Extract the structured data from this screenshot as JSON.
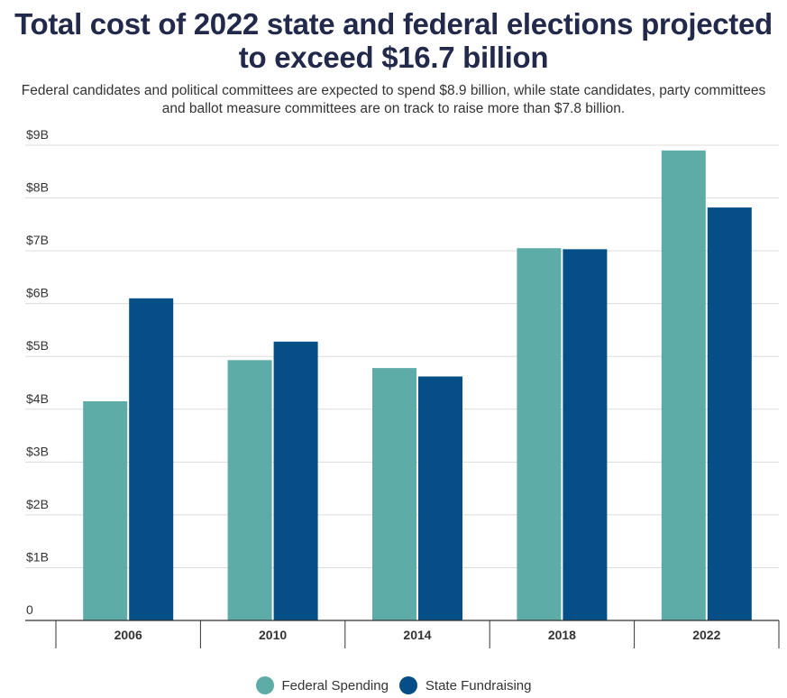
{
  "title": "Total cost of 2022 state and federal elections projected to exceed $16.7 billion",
  "subtitle": "Federal candidates and political committees are expected to spend $8.9 billion, while state candidates, party committees and ballot measure committees are on track to raise more than $7.8 billion.",
  "chart_data": {
    "type": "bar",
    "categories": [
      "2006",
      "2010",
      "2014",
      "2018",
      "2022"
    ],
    "series": [
      {
        "name": "Federal Spending",
        "color": "#5eaca8",
        "values": [
          4.15,
          4.93,
          4.78,
          7.05,
          8.9
        ]
      },
      {
        "name": "State Fundraising",
        "color": "#054f86",
        "values": [
          6.1,
          5.28,
          4.62,
          7.03,
          7.82
        ]
      }
    ],
    "yticks": [
      {
        "value": 0,
        "label": "0"
      },
      {
        "value": 1,
        "label": "$1B"
      },
      {
        "value": 2,
        "label": "$2B"
      },
      {
        "value": 3,
        "label": "$3B"
      },
      {
        "value": 4,
        "label": "$4B"
      },
      {
        "value": 5,
        "label": "$5B"
      },
      {
        "value": 6,
        "label": "$6B"
      },
      {
        "value": 7,
        "label": "$7B"
      },
      {
        "value": 8,
        "label": "$8B"
      },
      {
        "value": 9,
        "label": "$9B"
      }
    ],
    "ylim": [
      0,
      9
    ],
    "grid": true,
    "legend_position": "bottom-center"
  }
}
